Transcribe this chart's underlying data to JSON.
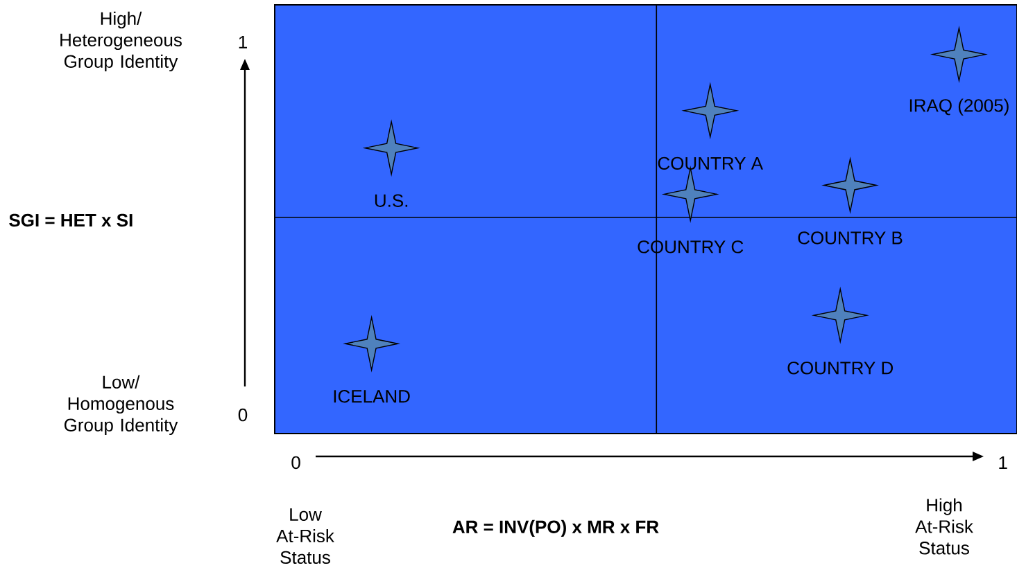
{
  "chart_data": {
    "type": "scatter",
    "xlabel": "AR = INV(PO) x MR x FR",
    "x": [
      0.135,
      0.586,
      0.938,
      0.558,
      0.784,
      0.77,
      0.107
    ],
    "values": [
      0.716,
      0.816,
      0.967,
      0.592,
      0.616,
      0.267,
      0.191
    ],
    "color": "#4f81bd",
    "marker": "star",
    "xlim": [
      -0.03,
      1.02
    ],
    "ylim": [
      -0.05,
      1.1
    ],
    "xticks": [
      0,
      1
    ],
    "yticks": [
      0,
      1
    ],
    "ref_lines": [
      {
        "axis": "x",
        "value": 0.51,
        "color": "#000000"
      },
      {
        "axis": "y",
        "value": 0.53,
        "color": "#000000"
      }
    ],
    "annotations": [
      "High/ Heterogeneous Group Identity",
      "Low/ Homogenous Group Identity",
      "Low At-Risk Status",
      "High At-Risk Status",
      "SGI = HET x SI",
      {
        "text": "U.S.",
        "x": 0.135,
        "y": 0.716
      },
      {
        "text": "COUNTRY A",
        "x": 0.586,
        "y": 0.816
      },
      {
        "text": "IRAQ (2005)",
        "x": 0.938,
        "y": 0.967
      },
      {
        "text": "COUNTRY C",
        "x": 0.558,
        "y": 0.592
      },
      {
        "text": "COUNTRY B",
        "x": 0.784,
        "y": 0.616
      },
      {
        "text": "COUNTRY D",
        "x": 0.77,
        "y": 0.267
      },
      {
        "text": "ICELAND",
        "x": 0.107,
        "y": 0.191
      }
    ]
  }
}
